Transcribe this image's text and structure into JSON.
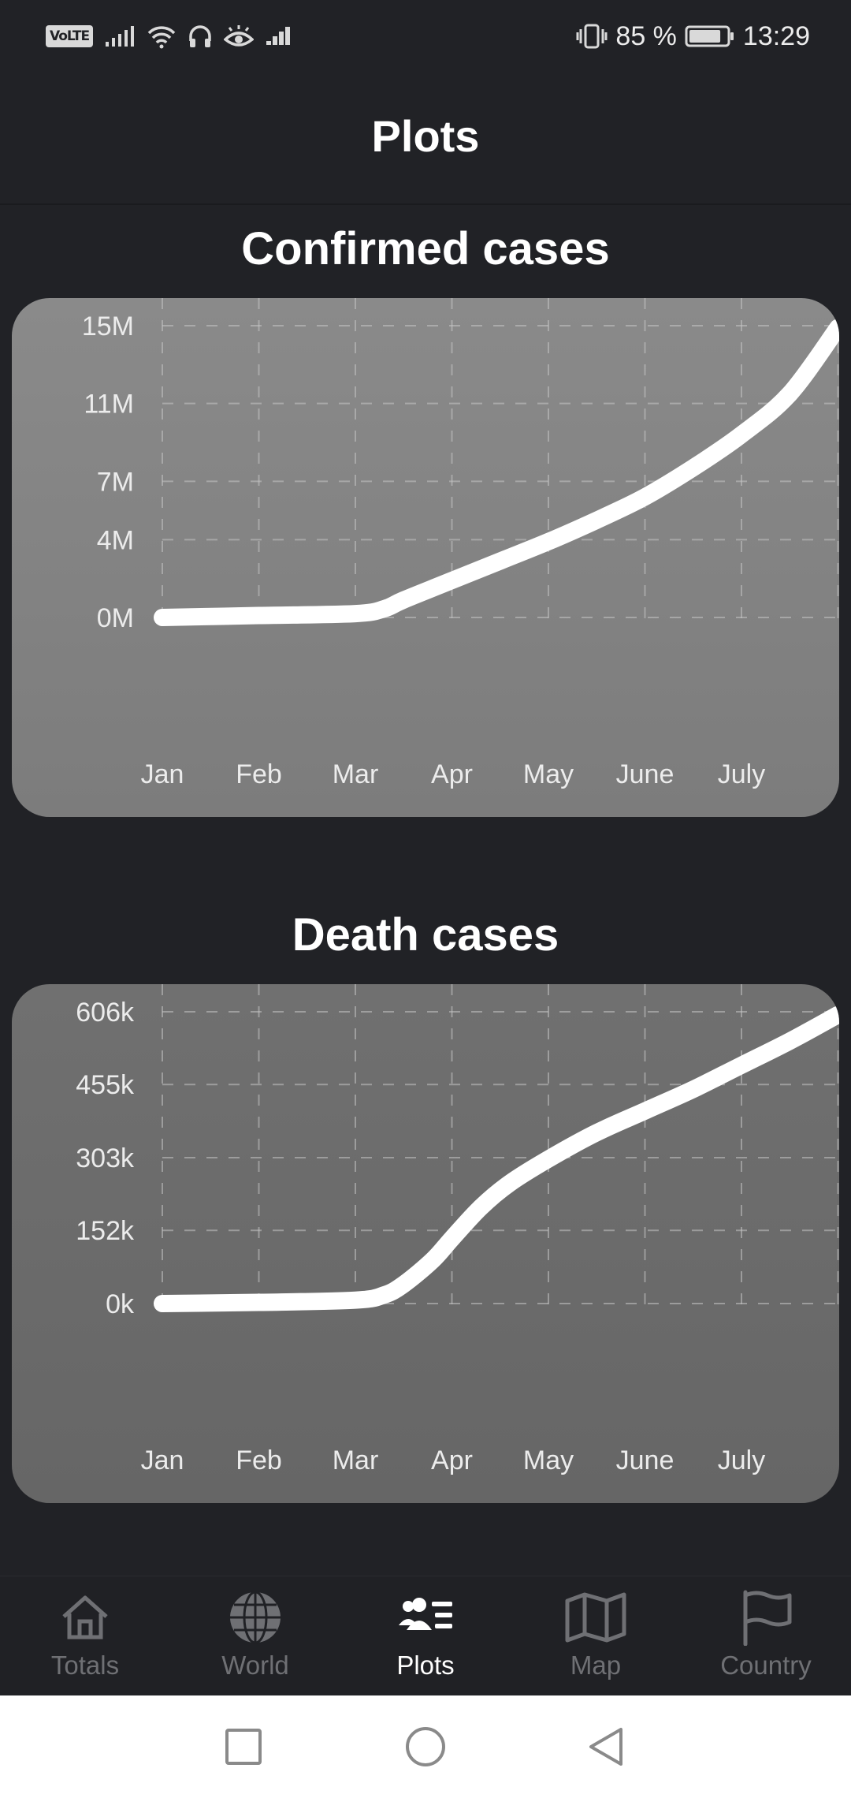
{
  "status_bar": {
    "volte": "VoLTE",
    "battery_percent": "85 %",
    "time": "13:29",
    "battery_level": 0.85
  },
  "app_bar": {
    "title": "Plots"
  },
  "charts": {
    "confirmed": {
      "title": "Confirmed cases"
    },
    "death": {
      "title": "Death cases"
    }
  },
  "chart_data": [
    {
      "type": "line",
      "title": "Confirmed cases",
      "x": [
        "Jan",
        "Feb",
        "Mar",
        "Apr",
        "May",
        "June",
        "July"
      ],
      "x_ticks": [
        "Jan",
        "Feb",
        "Mar",
        "Apr",
        "May",
        "June",
        "July"
      ],
      "y_ticks": [
        "15M",
        "11M",
        "7M",
        "4M",
        "0M"
      ],
      "y_tick_values": [
        15000000,
        11000000,
        7000000,
        4000000,
        0
      ],
      "ylim": [
        0,
        15000000
      ],
      "grid": true,
      "series": [
        {
          "x": [
            1.0,
            2.0,
            3.0,
            3.3,
            3.5,
            4.0,
            4.5,
            5.0,
            5.5,
            6.0,
            6.5,
            7.0,
            7.5,
            8.0
          ],
          "values": [
            0,
            100000,
            200000,
            450000,
            900000,
            1900000,
            2900000,
            3900000,
            5000000,
            6200000,
            7700000,
            9400000,
            11500000,
            14900000
          ],
          "color": "#ffffff"
        }
      ]
    },
    {
      "type": "line",
      "title": "Death cases",
      "x": [
        "Jan",
        "Feb",
        "Mar",
        "Apr",
        "May",
        "June",
        "July"
      ],
      "x_ticks": [
        "Jan",
        "Feb",
        "Mar",
        "Apr",
        "May",
        "June",
        "July"
      ],
      "y_ticks": [
        "606k",
        "455k",
        "303k",
        "152k",
        "0k"
      ],
      "y_tick_values": [
        606000,
        455000,
        303000,
        152000,
        0
      ],
      "ylim": [
        0,
        606000
      ],
      "grid": true,
      "series": [
        {
          "x": [
            1.0,
            2.0,
            3.0,
            3.3,
            3.5,
            3.8,
            4.0,
            4.3,
            4.6,
            5.0,
            5.5,
            6.0,
            6.5,
            7.0,
            7.5,
            8.0
          ],
          "values": [
            0,
            2500,
            7000,
            18000,
            40000,
            90000,
            135000,
            200000,
            250000,
            300000,
            355000,
            400000,
            445000,
            495000,
            545000,
            600000
          ],
          "color": "#ffffff"
        }
      ]
    }
  ],
  "bottom_nav": {
    "items": [
      {
        "label": "Totals",
        "icon": "home-icon",
        "active": false
      },
      {
        "label": "World",
        "icon": "globe-icon",
        "active": false
      },
      {
        "label": "Plots",
        "icon": "people-list-icon",
        "active": true
      },
      {
        "label": "Map",
        "icon": "map-icon",
        "active": false
      },
      {
        "label": "Country",
        "icon": "flag-icon",
        "active": false
      }
    ]
  },
  "system_nav": {
    "buttons": [
      "recents-button",
      "home-button",
      "back-button"
    ]
  }
}
